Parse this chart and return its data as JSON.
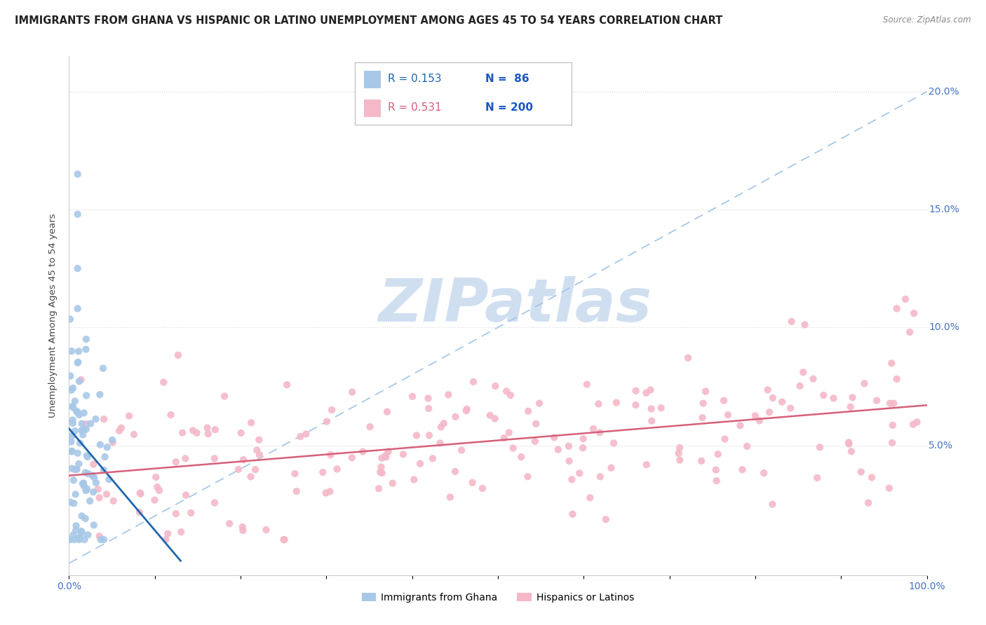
{
  "title": "IMMIGRANTS FROM GHANA VS HISPANIC OR LATINO UNEMPLOYMENT AMONG AGES 45 TO 54 YEARS CORRELATION CHART",
  "source": "Source: ZipAtlas.com",
  "ylabel": "Unemployment Among Ages 45 to 54 years",
  "xlim": [
    0,
    1.0
  ],
  "ylim": [
    -0.005,
    0.215
  ],
  "xticklabels": [
    "0.0%",
    "",
    "",
    "",
    "",
    "",
    "",
    "",
    "",
    "",
    "100.0%"
  ],
  "ytick_positions": [
    0.05,
    0.1,
    0.15,
    0.2
  ],
  "yticklabels_right": [
    "5.0%",
    "10.0%",
    "15.0%",
    "20.0%"
  ],
  "legend_r1": "R = 0.153",
  "legend_n1": "N =  86",
  "legend_r2": "R = 0.531",
  "legend_n2": "N = 200",
  "blue_dot_color": "#a8c8e8",
  "pink_dot_color": "#f4b8c8",
  "blue_line_color": "#2166ac",
  "pink_line_color": "#d6607a",
  "diag_line_color": "#a0c4e8",
  "watermark": "ZIPatlas",
  "watermark_color": "#d0dff0",
  "tick_color": "#4472c4",
  "background_color": "#ffffff",
  "grid_color": "#d8d8d8",
  "title_fontsize": 10.5,
  "label_fontsize": 9.5,
  "tick_fontsize": 10,
  "legend_fontsize": 11
}
